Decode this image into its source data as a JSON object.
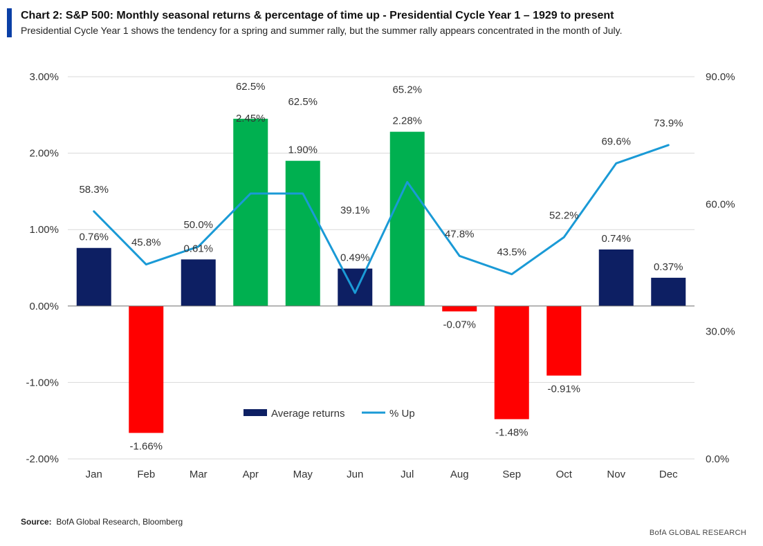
{
  "header": {
    "title": "Chart 2: S&P 500: Monthly seasonal returns & percentage of time up - Presidential Cycle Year 1 – 1929  to present",
    "subtitle": "Presidential Cycle Year 1 shows the tendency for a spring and summer rally, but the summer rally appears concentrated in the month of July."
  },
  "colors": {
    "positive": "#0d1f63",
    "negative": "#ff0000",
    "highlight": "#00b050",
    "line": "#1a9ad6",
    "grid": "#d9d9d9"
  },
  "chart_data": {
    "type": "bar",
    "categories": [
      "Jan",
      "Feb",
      "Mar",
      "Apr",
      "May",
      "Jun",
      "Jul",
      "Aug",
      "Sep",
      "Oct",
      "Nov",
      "Dec"
    ],
    "series": [
      {
        "name": "Average returns",
        "axis": "left",
        "values": [
          0.76,
          -1.66,
          0.61,
          2.45,
          1.9,
          0.49,
          2.28,
          -0.07,
          -1.48,
          -0.91,
          0.74,
          0.37
        ],
        "labels": [
          "0.76%",
          "-1.66%",
          "0.61%",
          "2.45%",
          "1.90%",
          "0.49%",
          "2.28%",
          "-0.07%",
          "-1.48%",
          "-0.91%",
          "0.74%",
          "0.37%"
        ],
        "highlight": [
          false,
          false,
          false,
          true,
          true,
          false,
          true,
          false,
          false,
          false,
          false,
          false
        ]
      },
      {
        "name": "% Up",
        "axis": "right",
        "type": "line",
        "values": [
          58.3,
          45.8,
          50.0,
          62.5,
          62.5,
          39.1,
          65.2,
          47.8,
          43.5,
          52.2,
          69.6,
          73.9
        ],
        "labels": [
          "58.3%",
          "45.8%",
          "50.0%",
          "62.5%",
          "62.5%",
          "39.1%",
          "65.2%",
          "47.8%",
          "43.5%",
          "52.2%",
          "69.6%",
          "73.9%"
        ]
      }
    ],
    "left_axis": {
      "ylim": [
        -2,
        3
      ],
      "ticks": [
        3,
        2,
        1,
        0,
        -1,
        -2
      ],
      "tick_labels": [
        "3.00%",
        "2.00%",
        "1.00%",
        "0.00%",
        "-1.00%",
        "-2.00%"
      ]
    },
    "right_axis": {
      "ylim": [
        0,
        90
      ],
      "ticks": [
        90,
        60,
        30,
        0
      ],
      "tick_labels": [
        "90.0%",
        "60.0%",
        "30.0%",
        "0.0%"
      ]
    },
    "grid": true,
    "legend": {
      "position": "bottom-center",
      "entries": [
        "Average returns",
        "% Up"
      ]
    }
  },
  "footer": {
    "source_label": "Source:",
    "source_text": "BofA Global Research, Bloomberg",
    "brand": "BofA GLOBAL RESEARCH"
  }
}
